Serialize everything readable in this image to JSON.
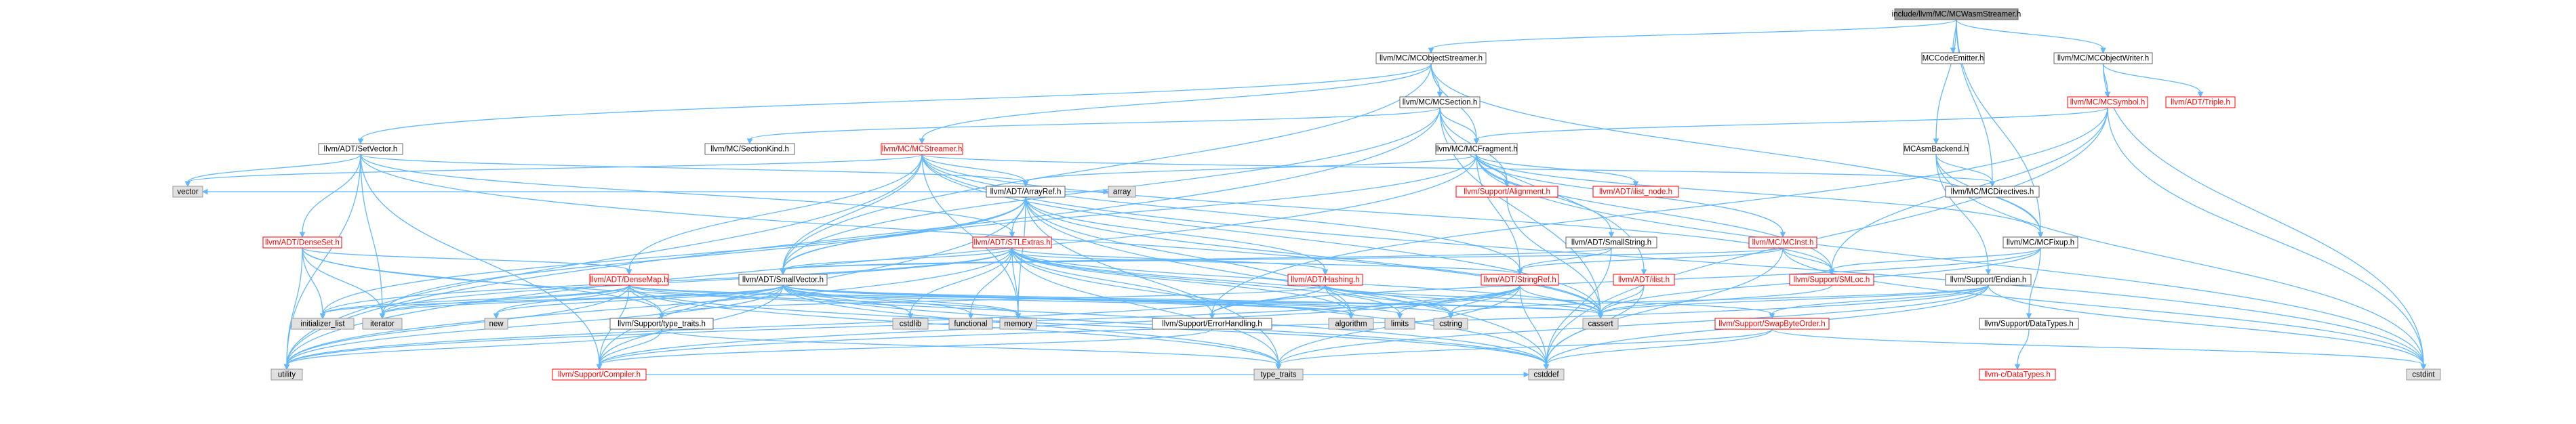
{
  "graph": {
    "title": "include/llvm/MC/MCWasmStreamer.h",
    "styles": {
      "root": {
        "fill": "#999999",
        "stroke": "#666666",
        "text": "#000000"
      },
      "normal": {
        "fill": "#ffffff",
        "stroke": "#666666",
        "text": "#000000"
      },
      "red": {
        "fill": "#ffffff",
        "stroke": "#ff0000",
        "text": "#ff0000"
      },
      "external": {
        "fill": "#e0e0e0",
        "stroke": "#999999",
        "text": "#000000"
      }
    },
    "edge_color": "#63b8ff",
    "nodes": [
      {
        "id": "root",
        "label": "include/llvm/MC/MCWasmStreamer.h",
        "style": "root"
      },
      {
        "id": "objstreamer",
        "label": "llvm/MC/MCObjectStreamer.h",
        "style": "normal"
      },
      {
        "id": "codeemitter",
        "label": "MCCodeEmitter.h",
        "style": "normal"
      },
      {
        "id": "objwriter",
        "label": "llvm/MC/MCObjectWriter.h",
        "style": "normal"
      },
      {
        "id": "mcsection",
        "label": "llvm/MC/MCSection.h",
        "style": "normal"
      },
      {
        "id": "mcsymbol",
        "label": "llvm/MC/MCSymbol.h",
        "style": "red"
      },
      {
        "id": "triple",
        "label": "llvm/ADT/Triple.h",
        "style": "red"
      },
      {
        "id": "setvector",
        "label": "llvm/ADT/SetVector.h",
        "style": "normal"
      },
      {
        "id": "sectionkind",
        "label": "llvm/MC/SectionKind.h",
        "style": "normal"
      },
      {
        "id": "mcstreamer",
        "label": "llvm/MC/MCStreamer.h",
        "style": "red"
      },
      {
        "id": "mcfragment",
        "label": "llvm/MC/MCFragment.h",
        "style": "normal"
      },
      {
        "id": "asmbackend",
        "label": "MCAsmBackend.h",
        "style": "normal"
      },
      {
        "id": "arrayref",
        "label": "llvm/ADT/ArrayRef.h",
        "style": "normal"
      },
      {
        "id": "alignment",
        "label": "llvm/Support/Alignment.h",
        "style": "red"
      },
      {
        "id": "ilistnode",
        "label": "llvm/ADT/ilist_node.h",
        "style": "red"
      },
      {
        "id": "directives",
        "label": "llvm/MC/MCDirectives.h",
        "style": "normal"
      },
      {
        "id": "vector",
        "label": "vector",
        "style": "external"
      },
      {
        "id": "denseset",
        "label": "llvm/ADT/DenseSet.h",
        "style": "red"
      },
      {
        "id": "array",
        "label": "array",
        "style": "external"
      },
      {
        "id": "stlextras",
        "label": "llvm/ADT/STLExtras.h",
        "style": "red"
      },
      {
        "id": "smallstring",
        "label": "llvm/ADT/SmallString.h",
        "style": "normal"
      },
      {
        "id": "mcinst",
        "label": "llvm/MC/MCInst.h",
        "style": "red"
      },
      {
        "id": "mcfixup",
        "label": "llvm/MC/MCFixup.h",
        "style": "normal"
      },
      {
        "id": "densemap",
        "label": "llvm/ADT/DenseMap.h",
        "style": "red"
      },
      {
        "id": "smallvector",
        "label": "llvm/ADT/SmallVector.h",
        "style": "normal"
      },
      {
        "id": "hashing",
        "label": "llvm/ADT/Hashing.h",
        "style": "red"
      },
      {
        "id": "stringref",
        "label": "llvm/ADT/StringRef.h",
        "style": "red"
      },
      {
        "id": "ilist",
        "label": "llvm/ADT/ilist.h",
        "style": "red"
      },
      {
        "id": "smloc",
        "label": "llvm/Support/SMLoc.h",
        "style": "red"
      },
      {
        "id": "endian",
        "label": "llvm/Support/Endian.h",
        "style": "normal"
      },
      {
        "id": "initlist",
        "label": "initializer_list",
        "style": "external"
      },
      {
        "id": "iterator",
        "label": "iterator",
        "style": "external"
      },
      {
        "id": "new",
        "label": "new",
        "style": "external"
      },
      {
        "id": "typetraitsh",
        "label": "llvm/Support/type_traits.h",
        "style": "normal"
      },
      {
        "id": "cstdlib",
        "label": "cstdlib",
        "style": "external"
      },
      {
        "id": "functional",
        "label": "functional",
        "style": "external"
      },
      {
        "id": "memory",
        "label": "memory",
        "style": "external"
      },
      {
        "id": "errorhandling",
        "label": "llvm/Support/ErrorHandling.h",
        "style": "normal"
      },
      {
        "id": "algorithm",
        "label": "algorithm",
        "style": "external"
      },
      {
        "id": "limits",
        "label": "limits",
        "style": "external"
      },
      {
        "id": "cstring",
        "label": "cstring",
        "style": "external"
      },
      {
        "id": "cassert",
        "label": "cassert",
        "style": "external"
      },
      {
        "id": "swapbyteorder",
        "label": "llvm/Support/SwapByteOrder.h",
        "style": "red"
      },
      {
        "id": "datatypes",
        "label": "llvm/Support/DataTypes.h",
        "style": "normal"
      },
      {
        "id": "utility",
        "label": "utility",
        "style": "external"
      },
      {
        "id": "compiler",
        "label": "llvm/Support/Compiler.h",
        "style": "red"
      },
      {
        "id": "typetraits",
        "label": "type_traits",
        "style": "external"
      },
      {
        "id": "cstddef",
        "label": "cstddef",
        "style": "external"
      },
      {
        "id": "cdatatypes",
        "label": "llvm-c/DataTypes.h",
        "style": "red"
      },
      {
        "id": "cstdint",
        "label": "cstdint",
        "style": "external"
      }
    ],
    "edges": [
      [
        "root",
        "objstreamer"
      ],
      [
        "root",
        "codeemitter"
      ],
      [
        "root",
        "objwriter"
      ],
      [
        "root",
        "asmbackend"
      ],
      [
        "root",
        "directives"
      ],
      [
        "root",
        "mcfixup"
      ],
      [
        "objstreamer",
        "mcsection"
      ],
      [
        "objstreamer",
        "mcfragment"
      ],
      [
        "objstreamer",
        "setvector"
      ],
      [
        "objstreamer",
        "smallvector"
      ],
      [
        "objstreamer",
        "mcstreamer"
      ],
      [
        "objstreamer",
        "mcfixup"
      ],
      [
        "objwriter",
        "mcsymbol"
      ],
      [
        "objwriter",
        "triple"
      ],
      [
        "objwriter",
        "cstdint"
      ],
      [
        "mcsymbol",
        "mcfragment"
      ],
      [
        "mcsymbol",
        "smloc"
      ],
      [
        "mcsymbol",
        "cstdint"
      ],
      [
        "mcsymbol",
        "cstddef"
      ],
      [
        "mcsymbol",
        "errorhandling"
      ],
      [
        "mcsection",
        "sectionkind"
      ],
      [
        "mcsection",
        "mcfragment"
      ],
      [
        "mcsection",
        "alignment"
      ],
      [
        "mcsection",
        "smallvector"
      ],
      [
        "mcsection",
        "ilist"
      ],
      [
        "mcsection",
        "utility"
      ],
      [
        "mcsection",
        "cassert"
      ],
      [
        "setvector",
        "arrayref"
      ],
      [
        "setvector",
        "denseset"
      ],
      [
        "setvector",
        "stlextras"
      ],
      [
        "setvector",
        "compiler"
      ],
      [
        "setvector",
        "vector"
      ],
      [
        "setvector",
        "cassert"
      ],
      [
        "setvector",
        "iterator"
      ],
      [
        "setvector",
        "utility"
      ],
      [
        "mcstreamer",
        "arrayref"
      ],
      [
        "mcstreamer",
        "densemap"
      ],
      [
        "mcstreamer",
        "smallvector"
      ],
      [
        "mcstreamer",
        "stringref"
      ],
      [
        "mcstreamer",
        "directives"
      ],
      [
        "mcstreamer",
        "smloc"
      ],
      [
        "mcstreamer",
        "cassert"
      ],
      [
        "mcstreamer",
        "cstdint"
      ],
      [
        "mcstreamer",
        "memory"
      ],
      [
        "mcstreamer",
        "vector"
      ],
      [
        "mcstreamer",
        "utility"
      ],
      [
        "mcfragment",
        "arrayref"
      ],
      [
        "mcfragment",
        "smallstring"
      ],
      [
        "mcfragment",
        "smallvector"
      ],
      [
        "mcfragment",
        "stringref"
      ],
      [
        "mcfragment",
        "ilistnode"
      ],
      [
        "mcfragment",
        "alignment"
      ],
      [
        "mcfragment",
        "mcfixup"
      ],
      [
        "mcfragment",
        "mcinst"
      ],
      [
        "mcfragment",
        "smloc"
      ],
      [
        "mcfragment",
        "cstdint"
      ],
      [
        "mcfragment",
        "utility"
      ],
      [
        "asmbackend",
        "directives"
      ],
      [
        "asmbackend",
        "mcfixup"
      ],
      [
        "asmbackend",
        "endian"
      ],
      [
        "asmbackend",
        "cstdint"
      ],
      [
        "arrayref",
        "hashing"
      ],
      [
        "arrayref",
        "smallvector"
      ],
      [
        "arrayref",
        "stlextras"
      ],
      [
        "arrayref",
        "compiler"
      ],
      [
        "arrayref",
        "algorithm"
      ],
      [
        "arrayref",
        "array"
      ],
      [
        "arrayref",
        "cassert"
      ],
      [
        "arrayref",
        "cstddef"
      ],
      [
        "arrayref",
        "initlist"
      ],
      [
        "arrayref",
        "iterator"
      ],
      [
        "arrayref",
        "memory"
      ],
      [
        "arrayref",
        "typetraits"
      ],
      [
        "arrayref",
        "vector"
      ],
      [
        "alignment",
        "cassert"
      ],
      [
        "denseset",
        "densemap"
      ],
      [
        "denseset",
        "initlist"
      ],
      [
        "denseset",
        "iterator"
      ],
      [
        "denseset",
        "utility"
      ],
      [
        "denseset",
        "cstddef"
      ],
      [
        "denseset",
        "typetraitsh"
      ],
      [
        "stlextras",
        "hashing"
      ],
      [
        "stlextras",
        "smallvector"
      ],
      [
        "stlextras",
        "errorhandling"
      ],
      [
        "stlextras",
        "algorithm"
      ],
      [
        "stlextras",
        "cassert"
      ],
      [
        "stlextras",
        "cstddef"
      ],
      [
        "stlextras",
        "cstdlib"
      ],
      [
        "stlextras",
        "functional"
      ],
      [
        "stlextras",
        "initlist"
      ],
      [
        "stlextras",
        "iterator"
      ],
      [
        "stlextras",
        "limits"
      ],
      [
        "stlextras",
        "memory"
      ],
      [
        "stlextras",
        "typetraits"
      ],
      [
        "stlextras",
        "utility"
      ],
      [
        "stlextras",
        "cstring"
      ],
      [
        "smallstring",
        "smallvector"
      ],
      [
        "smallstring",
        "stringref"
      ],
      [
        "smallstring",
        "cstddef"
      ],
      [
        "mcinst",
        "smallvector"
      ],
      [
        "mcinst",
        "stringref"
      ],
      [
        "mcinst",
        "smloc"
      ],
      [
        "mcinst",
        "cstddef"
      ],
      [
        "mcinst",
        "cstdint"
      ],
      [
        "mcfixup",
        "smloc"
      ],
      [
        "mcfixup",
        "datatypes"
      ],
      [
        "mcfixup",
        "errorhandling"
      ],
      [
        "mcfixup",
        "cassert"
      ],
      [
        "densemap",
        "typetraitsh"
      ],
      [
        "densemap",
        "compiler"
      ],
      [
        "densemap",
        "algorithm"
      ],
      [
        "densemap",
        "cassert"
      ],
      [
        "densemap",
        "cstddef"
      ],
      [
        "densemap",
        "initlist"
      ],
      [
        "densemap",
        "iterator"
      ],
      [
        "densemap",
        "new"
      ],
      [
        "densemap",
        "utility"
      ],
      [
        "densemap",
        "typetraits"
      ],
      [
        "densemap",
        "memory"
      ],
      [
        "smallvector",
        "compiler"
      ],
      [
        "smallvector",
        "typetraitsh"
      ],
      [
        "smallvector",
        "algorithm"
      ],
      [
        "smallvector",
        "cassert"
      ],
      [
        "smallvector",
        "cstddef"
      ],
      [
        "smallvector",
        "cstdlib"
      ],
      [
        "smallvector",
        "cstring"
      ],
      [
        "smallvector",
        "functional"
      ],
      [
        "smallvector",
        "initlist"
      ],
      [
        "smallvector",
        "iterator"
      ],
      [
        "smallvector",
        "limits"
      ],
      [
        "smallvector",
        "memory"
      ],
      [
        "smallvector",
        "new"
      ],
      [
        "smallvector",
        "typetraits"
      ],
      [
        "smallvector",
        "utility"
      ],
      [
        "hashing",
        "errorhandling"
      ],
      [
        "hashing",
        "swapbyteorder"
      ],
      [
        "hashing",
        "typetraitsh"
      ],
      [
        "hashing",
        "algorithm"
      ],
      [
        "hashing",
        "cassert"
      ],
      [
        "hashing",
        "cstring"
      ],
      [
        "hashing",
        "utility"
      ],
      [
        "stringref",
        "stlextras"
      ],
      [
        "stringref",
        "compiler"
      ],
      [
        "stringref",
        "algorithm"
      ],
      [
        "stringref",
        "cassert"
      ],
      [
        "stringref",
        "cstddef"
      ],
      [
        "stringref",
        "cstring"
      ],
      [
        "stringref",
        "limits"
      ],
      [
        "stringref",
        "typetraits"
      ],
      [
        "stringref",
        "utility"
      ],
      [
        "ilist",
        "cassert"
      ],
      [
        "ilist",
        "cstddef"
      ],
      [
        "smloc",
        "cassert"
      ],
      [
        "endian",
        "swapbyteorder"
      ],
      [
        "endian",
        "compiler"
      ],
      [
        "endian",
        "cassert"
      ],
      [
        "endian",
        "cstddef"
      ],
      [
        "endian",
        "cstdint"
      ],
      [
        "endian",
        "cstring"
      ],
      [
        "endian",
        "typetraits"
      ],
      [
        "typetraitsh",
        "compiler"
      ],
      [
        "typetraitsh",
        "typetraits"
      ],
      [
        "typetraitsh",
        "utility"
      ],
      [
        "errorhandling",
        "compiler"
      ],
      [
        "swapbyteorder",
        "cstddef"
      ],
      [
        "swapbyteorder",
        "cstdint"
      ],
      [
        "swapbyteorder",
        "typetraits"
      ],
      [
        "datatypes",
        "cdatatypes"
      ],
      [
        "compiler",
        "cstddef"
      ]
    ]
  }
}
